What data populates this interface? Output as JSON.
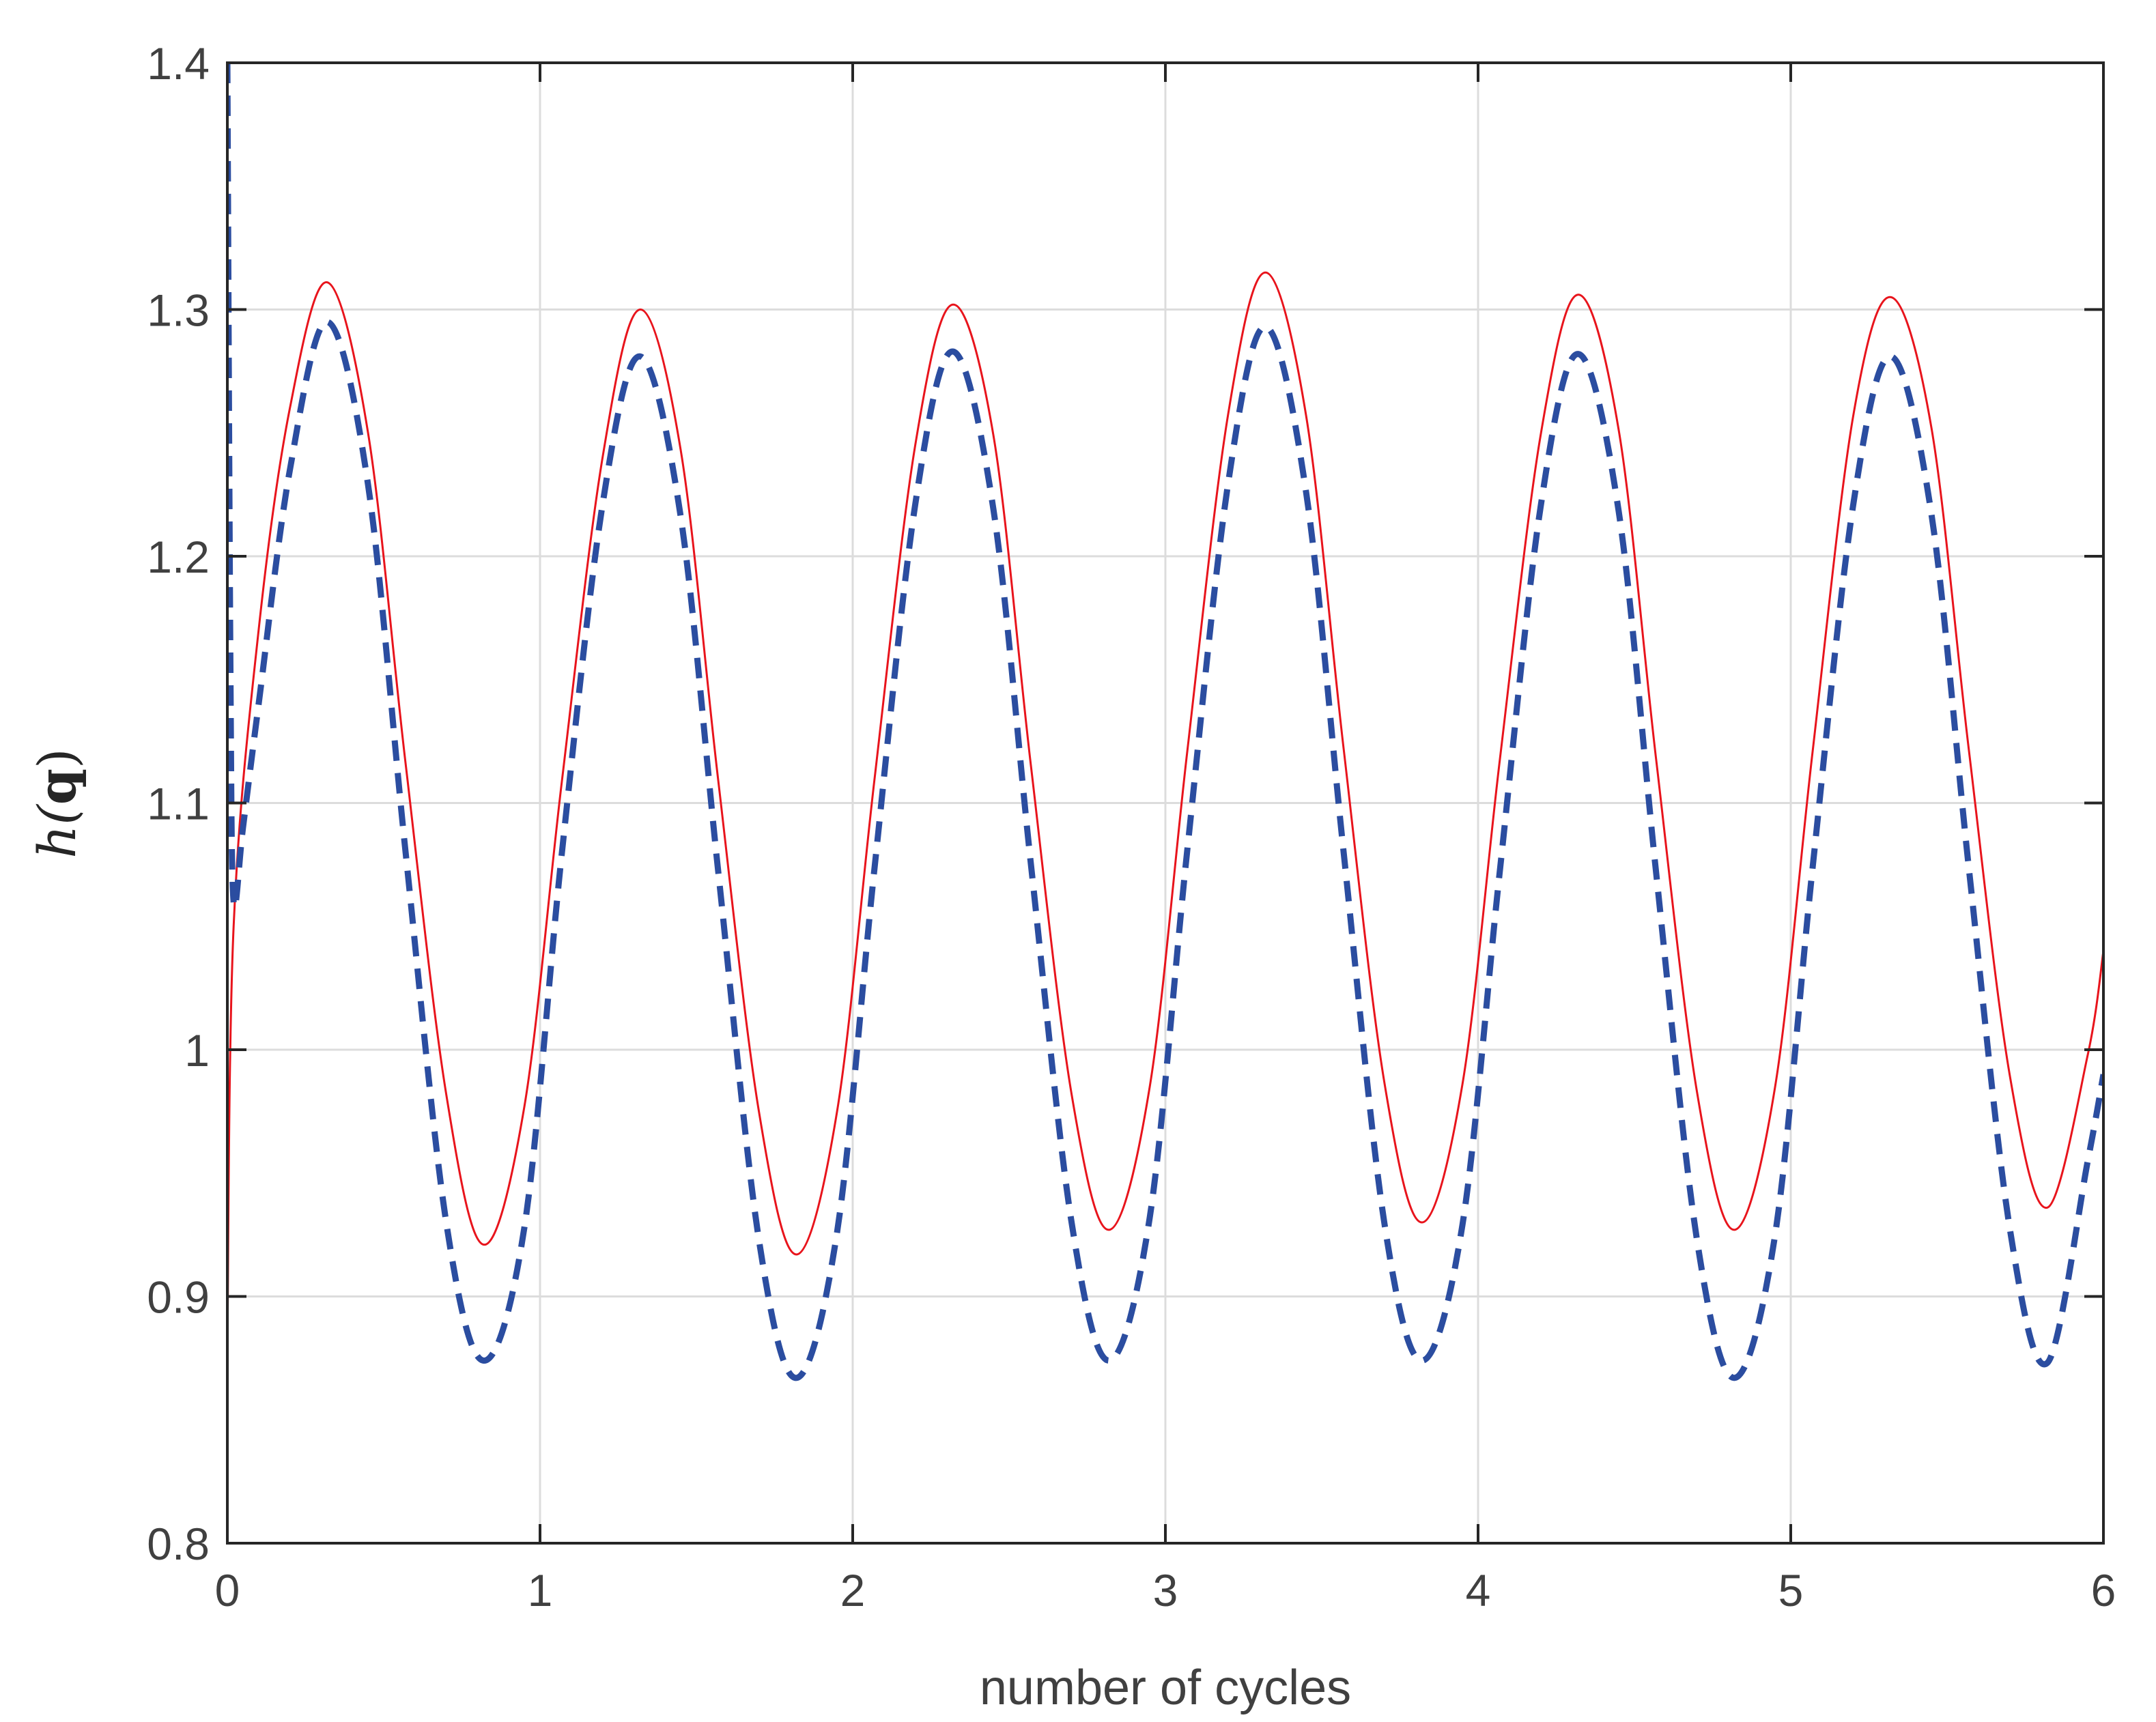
{
  "chart_data": {
    "type": "line",
    "xlabel": "number of cycles",
    "ylabel": "h(q)",
    "xlim": [
      0,
      6
    ],
    "ylim": [
      0.8,
      1.4
    ],
    "x_ticks": [
      "0",
      "1",
      "2",
      "3",
      "4",
      "5",
      "6"
    ],
    "y_ticks": [
      "0.8",
      "0.9",
      "1",
      "1.1",
      "1.2",
      "1.3",
      "1.4"
    ],
    "grid": true,
    "legend": "none",
    "series": [
      {
        "style": "solid",
        "color": "#e8141c",
        "x": [
          0,
          0.02,
          0.1,
          0.2,
          0.32,
          0.45,
          0.57,
          0.7,
          0.82,
          0.95,
          1.07,
          1.2,
          1.32,
          1.45,
          1.57,
          1.7,
          1.82,
          1.95,
          2.07,
          2.2,
          2.32,
          2.45,
          2.57,
          2.7,
          2.82,
          2.95,
          3.07,
          3.2,
          3.32,
          3.45,
          3.57,
          3.7,
          3.82,
          3.95,
          4.07,
          4.2,
          4.32,
          4.45,
          4.57,
          4.7,
          4.82,
          4.95,
          5.07,
          5.2,
          5.32,
          5.45,
          5.57,
          5.7,
          5.82,
          5.95,
          6.0
        ],
        "y": [
          0.88,
          1.05,
          1.17,
          1.26,
          1.311,
          1.25,
          1.116,
          0.982,
          0.921,
          0.977,
          1.109,
          1.24,
          1.3,
          1.243,
          1.109,
          0.975,
          0.917,
          0.975,
          1.11,
          1.245,
          1.302,
          1.249,
          1.115,
          0.982,
          0.927,
          0.985,
          1.121,
          1.257,
          1.315,
          1.257,
          1.122,
          0.987,
          0.93,
          0.986,
          1.118,
          1.249,
          1.306,
          1.251,
          1.117,
          0.983,
          0.927,
          0.985,
          1.121,
          1.257,
          1.305,
          1.252,
          1.121,
          0.99,
          0.936,
          0.998,
          1.04
        ]
      },
      {
        "style": "dashed",
        "color": "#2b4da0",
        "x": [
          0,
          0.01,
          0.02,
          0.05,
          0.1,
          0.2,
          0.32,
          0.45,
          0.57,
          0.7,
          0.82,
          0.95,
          1.07,
          1.2,
          1.32,
          1.45,
          1.57,
          1.7,
          1.82,
          1.95,
          2.07,
          2.2,
          2.32,
          2.45,
          2.57,
          2.7,
          2.82,
          2.95,
          3.07,
          3.2,
          3.32,
          3.45,
          3.57,
          3.7,
          3.82,
          3.95,
          4.07,
          4.2,
          4.32,
          4.45,
          4.57,
          4.7,
          4.82,
          4.95,
          5.07,
          5.2,
          5.32,
          5.45,
          5.57,
          5.7,
          5.82,
          5.95,
          6.0
        ],
        "y": [
          1.4,
          1.15,
          1.06,
          1.09,
          1.14,
          1.235,
          1.295,
          1.229,
          1.08,
          0.93,
          0.874,
          0.928,
          1.08,
          1.221,
          1.281,
          1.216,
          1.072,
          0.923,
          0.867,
          0.926,
          1.074,
          1.221,
          1.283,
          1.219,
          1.075,
          0.93,
          0.874,
          0.932,
          1.081,
          1.229,
          1.293,
          1.226,
          1.08,
          0.93,
          0.874,
          0.929,
          1.073,
          1.22,
          1.282,
          1.218,
          1.071,
          0.923,
          0.867,
          0.925,
          1.074,
          1.221,
          1.281,
          1.217,
          1.073,
          0.928,
          0.873,
          0.955,
          0.99
        ]
      }
    ]
  }
}
